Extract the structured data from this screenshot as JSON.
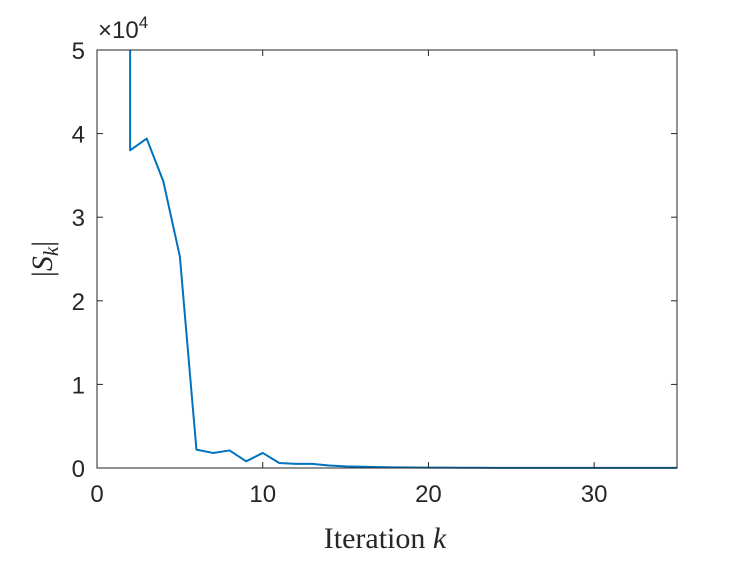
{
  "chart_data": {
    "type": "line",
    "xlabel": "Iteration",
    "xlabel_var": "k",
    "ylabel": "|S_k|",
    "y_scale_prefix": "×10",
    "y_scale_exponent": "4",
    "xlim": [
      0,
      35
    ],
    "ylim": [
      0,
      5
    ],
    "x_ticks": [
      0,
      10,
      20,
      30
    ],
    "y_ticks": [
      0,
      1,
      2,
      3,
      4,
      5
    ],
    "grid": false,
    "line_color": "#0072BD",
    "series": [
      {
        "x": [
          2,
          2,
          3,
          4,
          5,
          6,
          7,
          8,
          9,
          10,
          11,
          12,
          13,
          14,
          15,
          16,
          17,
          18,
          19,
          20,
          21,
          22,
          23,
          24,
          25,
          26,
          27,
          28,
          29,
          30,
          31,
          32,
          33,
          34,
          35
        ],
        "values": [
          5.0,
          3.8,
          3.94,
          3.43,
          2.53,
          0.22,
          0.18,
          0.21,
          0.08,
          0.18,
          0.06,
          0.05,
          0.05,
          0.03,
          0.02,
          0.015,
          0.01,
          0.008,
          0.006,
          0.005,
          0.004,
          0.003,
          0.003,
          0.002,
          0.002,
          0.002,
          0.002,
          0.001,
          0.001,
          0.001,
          0.001,
          0.001,
          0.001,
          0.001,
          0.001
        ]
      }
    ]
  }
}
